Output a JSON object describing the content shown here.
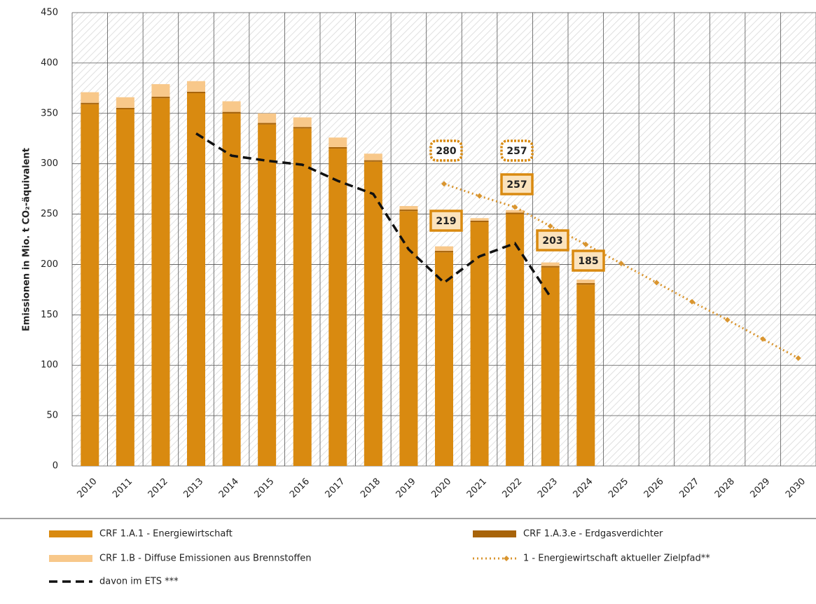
{
  "chart_data": {
    "type": "bar",
    "stacked": true,
    "y_label": "Emissionen in Mio. t CO₂-äquivalent",
    "categories": [
      "2010",
      "2011",
      "2012",
      "2013",
      "2014",
      "2015",
      "2016",
      "2017",
      "2018",
      "2019",
      "2020",
      "2021",
      "2022",
      "2023",
      "2024",
      "2025",
      "2026",
      "2027",
      "2028",
      "2029",
      "2030"
    ],
    "series": [
      {
        "name": "CRF 1.A.1 - Energiewirtschaft",
        "color": "#d98a10",
        "kind": "bar",
        "values": [
          359,
          354,
          365,
          370,
          350,
          339,
          335,
          315,
          302,
          253,
          212,
          242,
          250,
          197,
          180,
          null,
          null,
          null,
          null,
          null,
          null
        ]
      },
      {
        "name": "CRF 1.A.3.e - Erdgasverdichter",
        "color": "#a8640a",
        "kind": "bar",
        "values": [
          1.5,
          1.5,
          1.5,
          1.5,
          1.5,
          1.5,
          1.5,
          1.5,
          1.5,
          1.5,
          1.5,
          1.5,
          1.5,
          1.5,
          1.5,
          null,
          null,
          null,
          null,
          null,
          null
        ]
      },
      {
        "name": "CRF 1.B - Diffuse Emissionen aus Brennstoffen",
        "color": "#f8c88a",
        "kind": "bar",
        "values": [
          10.5,
          10.5,
          12.5,
          10.5,
          10.5,
          9.5,
          9.5,
          9.5,
          6.5,
          3.5,
          4.5,
          2.5,
          2.5,
          3.5,
          3.5,
          null,
          null,
          null,
          null,
          null,
          null
        ]
      },
      {
        "name": "1 - Energiewirtschaft aktueller Zielpfad**",
        "color": "#d9952f",
        "kind": "line",
        "style": "dotted",
        "marker": "diamond",
        "values": [
          null,
          null,
          null,
          null,
          null,
          null,
          null,
          null,
          null,
          null,
          280,
          268,
          257,
          238,
          220,
          201,
          182,
          163,
          145,
          126,
          107
        ]
      },
      {
        "name": "davon im ETS ***",
        "color": "#111111",
        "kind": "line",
        "style": "dashed",
        "values": [
          null,
          null,
          null,
          330,
          308,
          303,
          299,
          283,
          270,
          215,
          182,
          208,
          221,
          168,
          null,
          null,
          null,
          null,
          null,
          null,
          null
        ]
      }
    ],
    "annotations": [
      {
        "text": "280",
        "border": "dotted"
      },
      {
        "text": "257",
        "border": "dotted"
      },
      {
        "text": "257",
        "border": "solid"
      },
      {
        "text": "219",
        "border": "solid"
      },
      {
        "text": "203",
        "border": "solid"
      },
      {
        "text": "185",
        "border": "solid"
      }
    ],
    "ylim": [
      0,
      450
    ],
    "yticks": [
      0,
      50,
      100,
      150,
      200,
      250,
      300,
      350,
      400,
      450
    ],
    "grid": true
  }
}
